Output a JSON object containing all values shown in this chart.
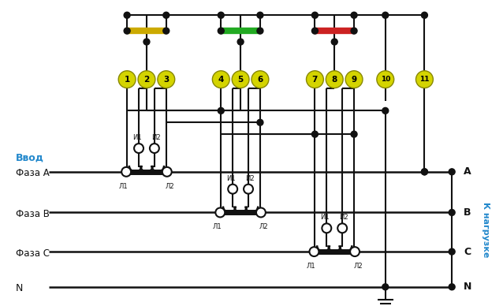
{
  "bg_color": "white",
  "vvod_label": "Ввод",
  "nagruzka_label": "К нагрузке",
  "terminal_color": "#d4d400",
  "terminal_ec": "#888800",
  "bus_colors": [
    "#ccaa00",
    "#22aa22",
    "#cc2222"
  ],
  "black": "#111111",
  "blue": "#2288cc",
  "phase_labels_left": [
    "Фаза A",
    "Фаза B",
    "Фаза C",
    "N"
  ],
  "phase_labels_right": [
    "A",
    "B",
    "C",
    "N"
  ],
  "terminals": [
    1,
    2,
    3,
    4,
    5,
    6,
    7,
    8,
    9,
    10,
    11
  ]
}
